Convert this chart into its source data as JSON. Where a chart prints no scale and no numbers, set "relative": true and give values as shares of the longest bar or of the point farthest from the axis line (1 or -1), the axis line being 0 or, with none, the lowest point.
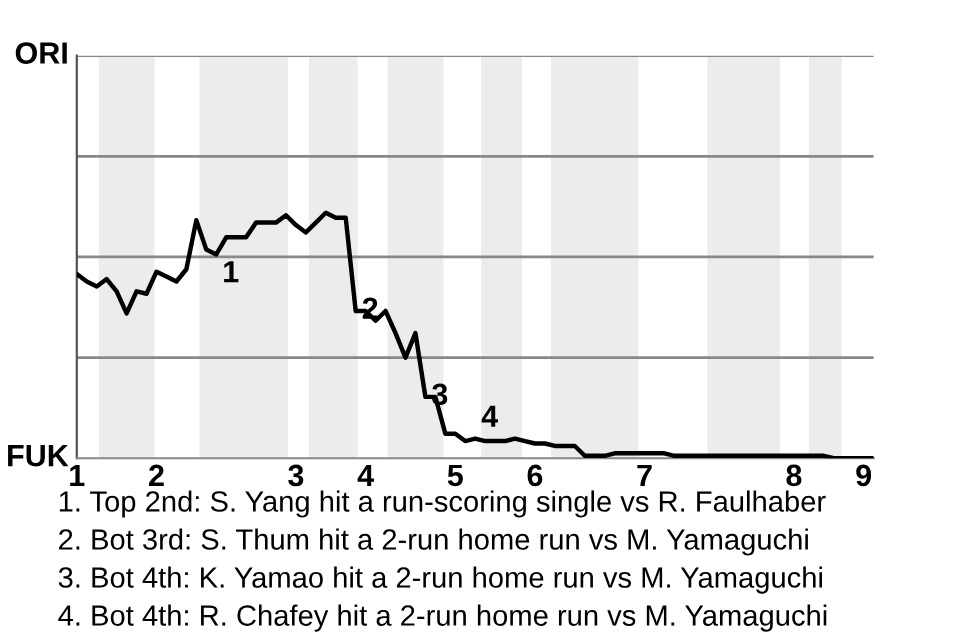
{
  "chart_data": {
    "type": "line",
    "relative": true,
    "categories": [
      "1",
      null,
      null,
      null,
      null,
      null,
      null,
      null,
      "2",
      null,
      null,
      null,
      null,
      null,
      null,
      null,
      null,
      null,
      null,
      null,
      null,
      null,
      "3",
      null,
      null,
      null,
      null,
      null,
      null,
      "4",
      null,
      null,
      null,
      null,
      null,
      null,
      null,
      null,
      "5",
      null,
      null,
      null,
      null,
      null,
      null,
      null,
      "6",
      null,
      null,
      null,
      null,
      null,
      null,
      null,
      null,
      null,
      null,
      "7",
      null,
      null,
      null,
      null,
      null,
      null,
      null,
      null,
      null,
      null,
      null,
      null,
      null,
      null,
      "8",
      null,
      null,
      null,
      null,
      null,
      null,
      "9",
      null
    ],
    "ref_lines": [
      {
        "axis": "y",
        "value": 0.41
      },
      {
        "axis": "y",
        "value": 0.82
      },
      {
        "axis": "y",
        "value": 1.23
      },
      {
        "axis": "y",
        "value": 1.64
      }
    ],
    "line_style": "solid",
    "marker": "none",
    "series": [
      {
        "color": "#000000",
        "values": [
          0.75,
          0.72,
          0.7,
          0.73,
          0.68,
          0.59,
          0.68,
          0.67,
          0.76,
          0.74,
          0.72,
          0.77,
          0.97,
          0.85,
          0.83,
          0.9,
          0.9,
          0.9,
          0.96,
          0.96,
          0.96,
          0.99,
          0.95,
          0.92,
          0.96,
          1.0,
          0.98,
          0.98,
          0.6,
          0.6,
          0.56,
          0.6,
          0.51,
          0.41,
          0.51,
          0.25,
          0.25,
          0.1,
          0.1,
          0.07,
          0.08,
          0.07,
          0.07,
          0.07,
          0.08,
          0.07,
          0.06,
          0.06,
          0.05,
          0.05,
          0.05,
          0.01,
          0.01,
          0.01,
          0.02,
          0.02,
          0.02,
          0.02,
          0.02,
          0.02,
          0.01,
          0.01,
          0.01,
          0.01,
          0.01,
          0.01,
          0.01,
          0.01,
          0.01,
          0.01,
          0.01,
          0.01,
          0.01,
          0.01,
          0.01,
          0.01,
          0.0,
          0.0,
          0.0,
          0.0,
          0.0
        ]
      }
    ],
    "annotations": [
      "ORI",
      "FUK",
      {
        "text": "1",
        "y": 0.83
      },
      {
        "text": "2",
        "y": 0.6
      },
      {
        "text": "3",
        "y": 0.25
      },
      {
        "text": "4",
        "y": 0.08
      },
      "1. Top 2nd: S. Yang hit a run-scoring single vs R. Faulhaber",
      "2. Bot 3rd: S. Thum hit a 2-run home run vs M. Yamaguchi",
      "3. Bot 4th: K. Yamao hit a 2-run home run vs M. Yamaguchi",
      "4. Bot 4th: R. Chafey hit a 2-run home run vs M. Yamaguchi"
    ]
  }
}
